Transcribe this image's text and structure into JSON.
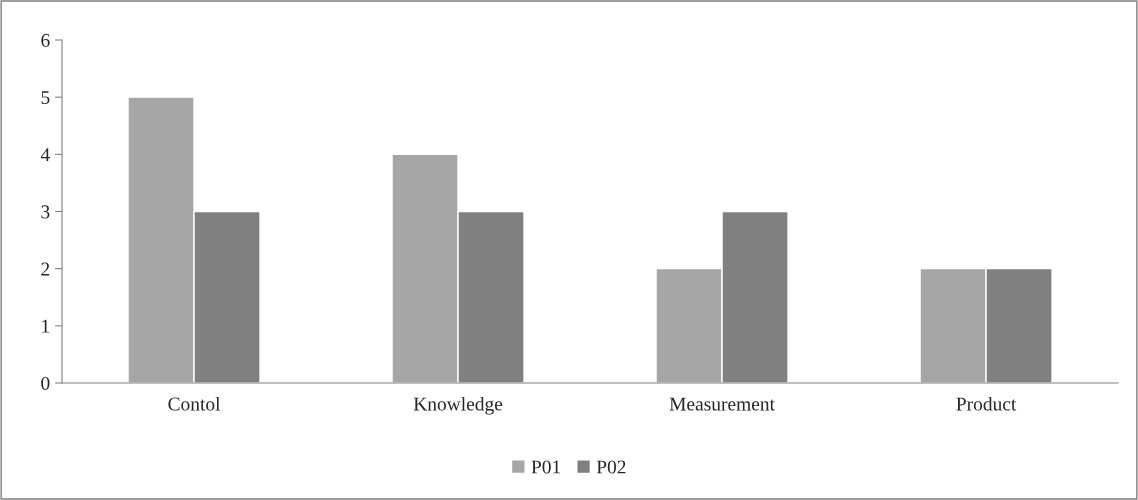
{
  "chart_data": {
    "type": "bar",
    "categories": [
      "Contol",
      "Knowledge",
      "Measurement",
      "Product"
    ],
    "series": [
      {
        "name": "P01",
        "color": "#a6a6a6",
        "values": [
          5,
          4,
          2,
          2
        ]
      },
      {
        "name": "P02",
        "color": "#808080",
        "values": [
          3,
          3,
          3,
          2
        ]
      }
    ],
    "ylim": [
      0,
      6
    ],
    "yticks": [
      0,
      1,
      2,
      3,
      4,
      5,
      6
    ],
    "grid": false,
    "legend": "bottom"
  }
}
